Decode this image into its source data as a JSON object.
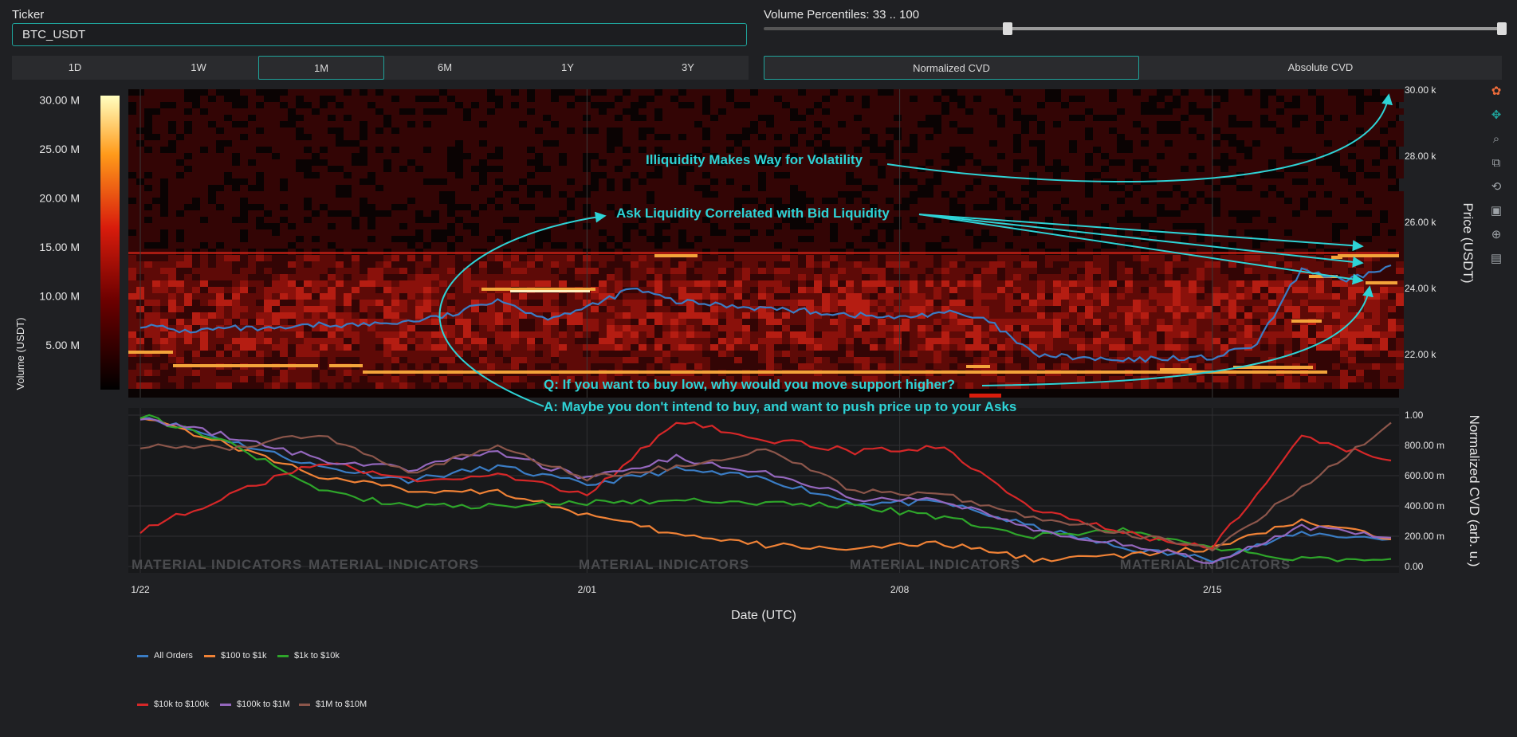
{
  "ticker": {
    "label": "Ticker",
    "value": "BTC_USDT"
  },
  "timeframes": {
    "items": [
      "1D",
      "1W",
      "1M",
      "6M",
      "1Y",
      "3Y"
    ],
    "active": "1M"
  },
  "volume_percentiles": {
    "label": "Volume Percentiles: 33 .. 100",
    "low": 33,
    "high": 100
  },
  "cvd_mode": {
    "items": [
      "Normalized CVD",
      "Absolute CVD"
    ],
    "active": "Normalized CVD"
  },
  "heatmap": {
    "colorbar_title": "Volume (USDT)",
    "colorbar_ticks": [
      "5.00 M",
      "10.00 M",
      "15.00 M",
      "20.00 M",
      "25.00 M",
      "30.00 M"
    ],
    "y_title": "Price (USDT)",
    "y_ticks": [
      "22.00 k",
      "24.00 k",
      "26.00 k",
      "28.00 k",
      "30.00 k"
    ]
  },
  "cvd": {
    "y_title": "Normalized CVD (arb. u.)",
    "y_ticks": [
      "0.00",
      "200.00 m",
      "400.00 m",
      "600.00 m",
      "800.00 m",
      "1.00"
    ]
  },
  "x_axis": {
    "title": "Date (UTC)",
    "ticks": [
      "1/22",
      "2/01",
      "2/08",
      "2/15"
    ]
  },
  "watermark": "MATERIAL INDICATORS",
  "annotations": {
    "a1": "Illiquidity Makes Way for Volatility",
    "a2": "Ask Liquidity Correlated with Bid Liquidity",
    "a3": "Q: If you want to buy low, why would you move support higher?",
    "a4": "A: Maybe you don't intend to buy, and want to push price up to your Asks"
  },
  "legend": [
    {
      "name": "All Orders",
      "color": "#3a7cc4"
    },
    {
      "name": "$100 to $1k",
      "color": "#f08236"
    },
    {
      "name": "$1k to $10k",
      "color": "#2ea52a"
    },
    {
      "name": "$10k to $100k",
      "color": "#d62728"
    },
    {
      "name": "$100k to $1M",
      "color": "#9467bd"
    },
    {
      "name": "$1M to $10M",
      "color": "#8c564b"
    }
  ],
  "colors": {
    "accent": "#1fa39b",
    "annotation": "#2ed3d6"
  },
  "chart_data": [
    {
      "type": "heatmap",
      "title": "",
      "xlabel": "Date (UTC)",
      "ylabel": "Price (USDT)",
      "ylim": [
        21000,
        30000
      ],
      "colorbar_label": "Volume (USDT)",
      "colorbar_range": [
        0,
        30000000
      ],
      "price_line": {
        "name": "Price",
        "x_day": [
          0,
          1,
          2,
          3,
          4,
          5,
          6,
          7,
          8,
          9,
          10,
          11,
          12,
          13,
          14,
          15,
          16,
          17,
          18,
          19,
          20,
          21,
          22,
          23,
          24,
          25,
          26,
          27,
          28
        ],
        "y": [
          22900,
          22700,
          22800,
          22750,
          22900,
          22900,
          23000,
          23200,
          23700,
          23100,
          23400,
          24000,
          23600,
          23500,
          23400,
          23300,
          23200,
          23100,
          23300,
          23000,
          22000,
          21900,
          21800,
          21900,
          21900,
          22300,
          24600,
          24200,
          24700
        ]
      }
    },
    {
      "type": "line",
      "title": "",
      "xlabel": "Date (UTC)",
      "ylabel": "Normalized CVD (arb. u.)",
      "ylim": [
        0,
        1
      ],
      "x_day": [
        0,
        2,
        4,
        6,
        8,
        10,
        12,
        14,
        16,
        18,
        20,
        22,
        24,
        26,
        28
      ],
      "series": [
        {
          "name": "All Orders",
          "values": [
            1.0,
            0.83,
            0.66,
            0.57,
            0.66,
            0.54,
            0.64,
            0.58,
            0.42,
            0.42,
            0.26,
            0.12,
            0.05,
            0.22,
            0.18
          ]
        },
        {
          "name": "$100 to $1k",
          "values": [
            1.0,
            0.8,
            0.6,
            0.5,
            0.5,
            0.34,
            0.21,
            0.14,
            0.12,
            0.15,
            0.05,
            0.07,
            0.12,
            0.3,
            0.18
          ]
        },
        {
          "name": "$1k to $10k",
          "values": [
            1.0,
            0.82,
            0.5,
            0.4,
            0.4,
            0.42,
            0.44,
            0.42,
            0.4,
            0.32,
            0.2,
            0.24,
            0.12,
            0.05,
            0.05
          ]
        },
        {
          "name": "$10k to $100k",
          "values": [
            0.24,
            0.47,
            0.69,
            0.57,
            0.61,
            0.47,
            0.96,
            0.84,
            0.76,
            0.79,
            0.38,
            0.22,
            0.12,
            0.85,
            0.7
          ]
        },
        {
          "name": "$100k to $1M",
          "values": [
            0.99,
            0.86,
            0.71,
            0.64,
            0.76,
            0.58,
            0.72,
            0.62,
            0.45,
            0.44,
            0.24,
            0.15,
            0.03,
            0.26,
            0.19
          ]
        },
        {
          "name": "$1M to $10M",
          "values": [
            0.8,
            0.78,
            0.88,
            0.62,
            0.8,
            0.58,
            0.66,
            0.78,
            0.5,
            0.47,
            0.33,
            0.22,
            0.12,
            0.51,
            0.95
          ]
        }
      ]
    }
  ]
}
